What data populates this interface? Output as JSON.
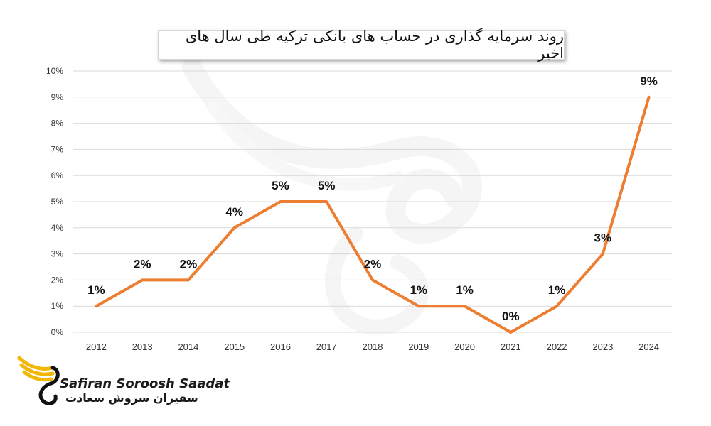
{
  "chart_data": {
    "type": "line",
    "title": "روند سرمایه گذاری در حساب های بانکی ترکیه طی سال های اخیر",
    "xlabel": "",
    "ylabel": "",
    "categories": [
      "2012",
      "2013",
      "2014",
      "2015",
      "2016",
      "2017",
      "2018",
      "2019",
      "2020",
      "2021",
      "2022",
      "2023",
      "2024"
    ],
    "values": [
      1,
      2,
      2,
      4,
      5,
      5,
      2,
      1,
      1,
      0,
      1,
      3,
      9
    ],
    "data_labels": [
      "1%",
      "2%",
      "2%",
      "4%",
      "5%",
      "5%",
      "2%",
      "1%",
      "1%",
      "0%",
      "1%",
      "3%",
      "9%"
    ],
    "ylim": [
      0,
      10
    ],
    "y_ticks": [
      "0%",
      "1%",
      "2%",
      "3%",
      "4%",
      "5%",
      "6%",
      "7%",
      "8%",
      "9%",
      "10%"
    ],
    "grid": true,
    "legend": "none",
    "line_color": "#ED7D31",
    "grid_color": "#D9D9D9"
  },
  "logo": {
    "brand_en": "Safiran Soroosh Saadat",
    "brand_fa": "سفیران سروش سعادت",
    "accent_color": "#F2B705"
  }
}
